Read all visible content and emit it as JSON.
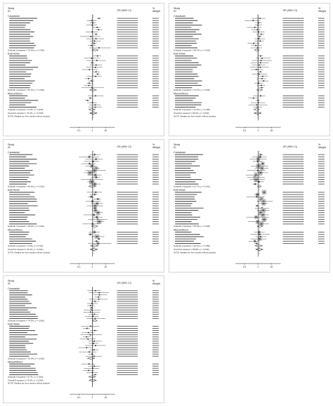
{
  "colors": {
    "line": "#222222",
    "box": "#9e9e9e",
    "shade": "#bdbdbd",
    "pooled": "#ffffff"
  },
  "chart_data": [
    {
      "type": "forest",
      "header": [
        "Study",
        "ID",
        "OR (95% CI)",
        "%",
        "Weight"
      ],
      "xlim": [
        0.02,
        50
      ],
      "xticks": [
        "0.1",
        "1",
        "10"
      ],
      "shaded_weights": false,
      "note": "NOTE: Weights are from random effects analysis",
      "subgroups": [
        {
          "name": "Caucasian",
          "n": 14,
          "pooled": "Subtotal (I-squared = 70.3%, p = 0.000)"
        },
        {
          "name": "East Asian",
          "n": 15,
          "pooled": "Subtotal (I-squared = 81.2%, p = 0.000)"
        },
        {
          "name": "Mixed/Others",
          "n": 6,
          "pooled": "Subtotal (I-squared = 0.0%, p = 0.533)"
        }
      ],
      "overall": "Overall (I-squared = 75.1%, p = 0.000)"
    },
    {
      "type": "forest",
      "header": [
        "Study",
        "ID",
        "OR (95% CI)",
        "%",
        "Weight"
      ],
      "xlim": [
        0.02,
        50
      ],
      "xticks": [
        "0.1",
        "1",
        "10"
      ],
      "shaded_weights": false,
      "note": "NOTE: Weights are from random effects analysis",
      "subgroups": [
        {
          "name": "Caucasian",
          "n": 14,
          "pooled": "Subtotal (I-squared = 58.2%, p = 0.003)"
        },
        {
          "name": "East Asian",
          "n": 15,
          "pooled": "Subtotal (I-squared = 72.4%, p = 0.000)"
        },
        {
          "name": "Mixed/Others",
          "n": 6,
          "pooled": "Subtotal (I-squared = 12.5%, p = 0.335)"
        }
      ],
      "overall": "Overall (I-squared = 66.0%, p = 0.000)"
    },
    {
      "type": "forest",
      "header": [
        "Study",
        "ID",
        "OR (95% CI)",
        "%",
        "Weight"
      ],
      "xlim": [
        0.02,
        50
      ],
      "xticks": [
        "0.1",
        "1",
        "10"
      ],
      "shaded_weights": true,
      "note": "NOTE: Weights are from random effects analysis",
      "subgroups": [
        {
          "name": "Caucasian",
          "n": 14,
          "pooled": "Subtotal (I-squared = 45.6%, p = 0.031)"
        },
        {
          "name": "East Asian",
          "n": 15,
          "pooled": "Subtotal (I-squared = 38.9%, p = 0.061)"
        },
        {
          "name": "Mixed/Others",
          "n": 6,
          "pooled": "Subtotal (I-squared = 0.0%, p = 0.702)"
        }
      ],
      "overall": "Overall (I-squared = 44.2%, p = 0.001)"
    },
    {
      "type": "forest",
      "header": [
        "Study",
        "ID",
        "OR (95% CI)",
        "%",
        "Weight"
      ],
      "xlim": [
        0.02,
        50
      ],
      "xticks": [
        "0.1",
        "1",
        "10"
      ],
      "shaded_weights": true,
      "note": "NOTE: Weights are from random effects analysis",
      "subgroups": [
        {
          "name": "Caucasian",
          "n": 14,
          "pooled": "Subtotal (I-squared = 61.7%, p = 0.001)"
        },
        {
          "name": "East Asian",
          "n": 15,
          "pooled": "Subtotal (I-squared = 55.3%, p = 0.005)"
        },
        {
          "name": "Mixed/Others",
          "n": 6,
          "pooled": "Subtotal (I-squared = 20.4%, p = 0.280)"
        }
      ],
      "overall": "Overall (I-squared = 58.8%, p = 0.000)"
    },
    {
      "type": "forest",
      "header": [
        "Study",
        "ID",
        "OR (95% CI)",
        "%",
        "Weight"
      ],
      "xlim": [
        0.02,
        50
      ],
      "xticks": [
        "0.1",
        "1",
        "10"
      ],
      "shaded_weights": false,
      "note": "NOTE: Weights are from random effects analysis",
      "subgroups": [
        {
          "name": "Caucasian",
          "n": 14,
          "pooled": "Subtotal (I-squared = 74.5%, p = 0.000)"
        },
        {
          "name": "East Asian",
          "n": 15,
          "pooled": "Subtotal (I-squared = 79.0%, p = 0.000)"
        },
        {
          "name": "Mixed/Others",
          "n": 6,
          "pooled": "Subtotal (I-squared = 8.7%, p = 0.362)"
        }
      ],
      "overall": "Overall (I-squared = 76.3%, p = 0.000)"
    }
  ]
}
